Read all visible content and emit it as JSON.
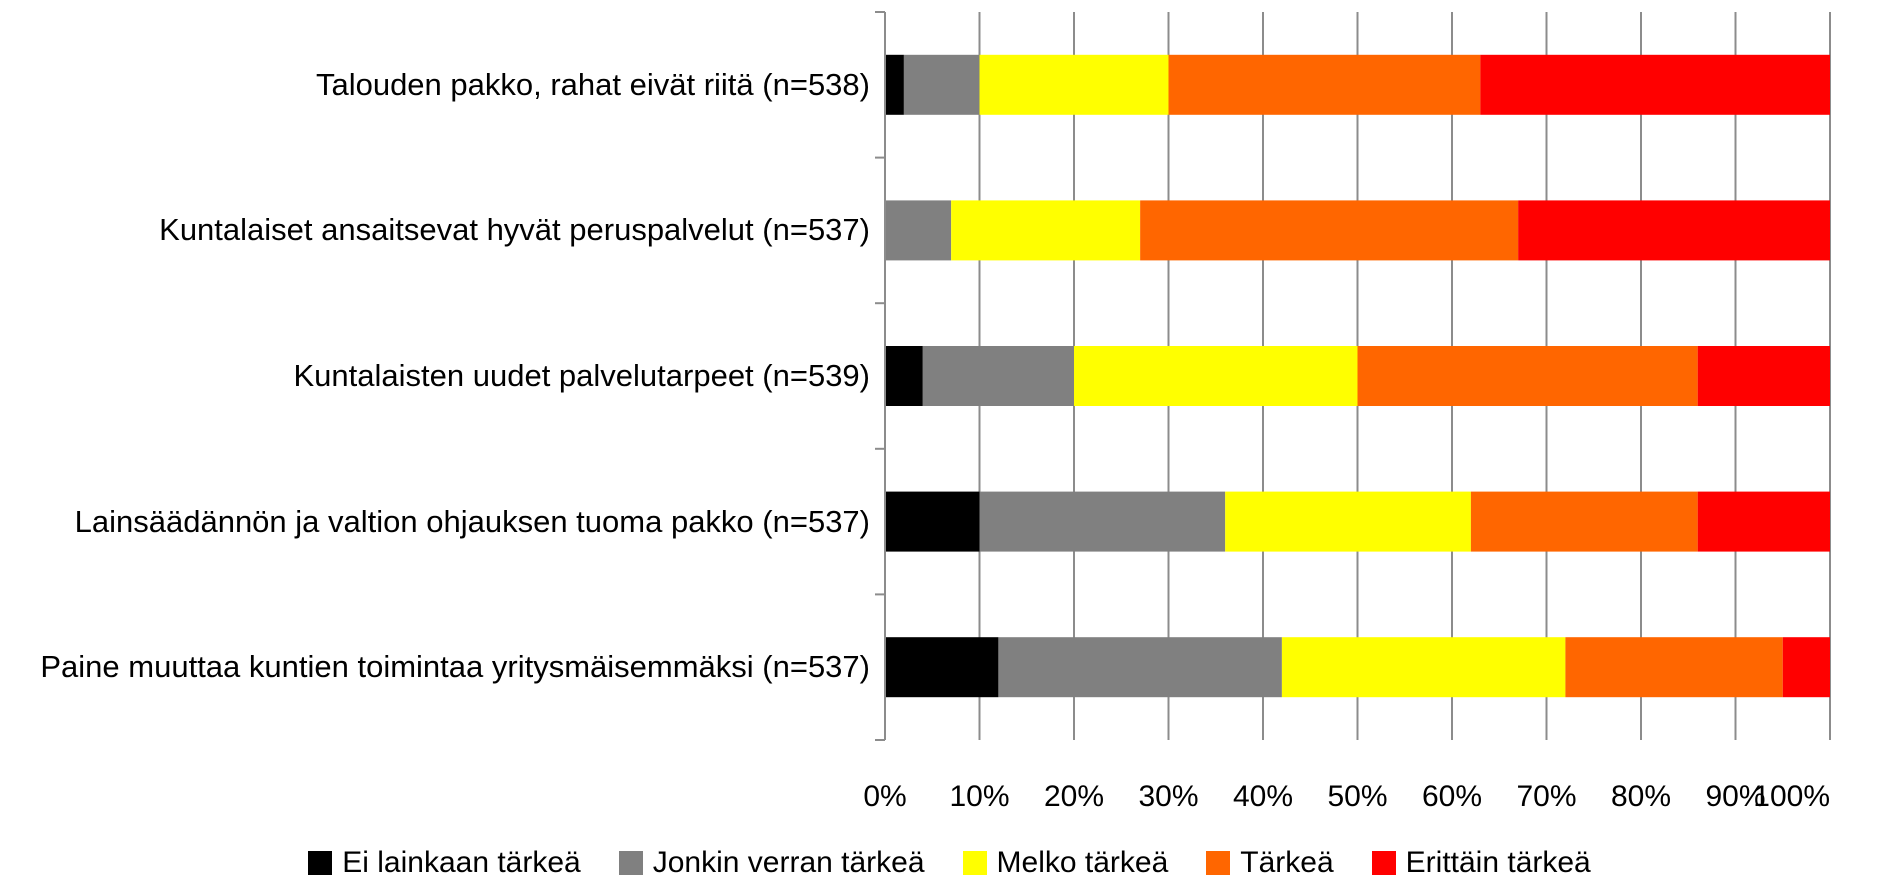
{
  "chart_data": {
    "type": "bar",
    "orientation": "horizontal",
    "stacked": true,
    "percent_stacked": true,
    "categories": [
      "Talouden pakko, rahat eivät riitä (n=538)",
      "Kuntalaiset ansaitsevat hyvät peruspalvelut (n=537)",
      "Kuntalaisten uudet palvelutarpeet (n=539)",
      "Lainsäädännön ja valtion ohjauksen tuoma pakko (n=537)",
      "Paine muuttaa kuntien toimintaa yritysmäisemmäksi (n=537)"
    ],
    "series": [
      {
        "name": "Ei lainkaan tärkeä",
        "color": "#000000",
        "values": [
          2,
          0,
          4,
          10,
          12
        ]
      },
      {
        "name": "Jonkin verran tärkeä",
        "color": "#808080",
        "values": [
          8,
          7,
          16,
          26,
          30
        ]
      },
      {
        "name": "Melko tärkeä",
        "color": "#FFFF00",
        "values": [
          20,
          20,
          30,
          26,
          30
        ]
      },
      {
        "name": "Tärkeä",
        "color": "#FF6600",
        "values": [
          33,
          40,
          36,
          24,
          23
        ]
      },
      {
        "name": "Erittäin tärkeä",
        "color": "#FF0000",
        "values": [
          37,
          33,
          14,
          14,
          5
        ]
      }
    ],
    "x_ticks": [
      "0%",
      "10%",
      "20%",
      "30%",
      "40%",
      "50%",
      "60%",
      "70%",
      "80%",
      "90%",
      "100%"
    ],
    "xlim": [
      0,
      100
    ],
    "grid": "vertical",
    "legend_position": "bottom",
    "title": "",
    "xlabel": "",
    "ylabel": ""
  }
}
